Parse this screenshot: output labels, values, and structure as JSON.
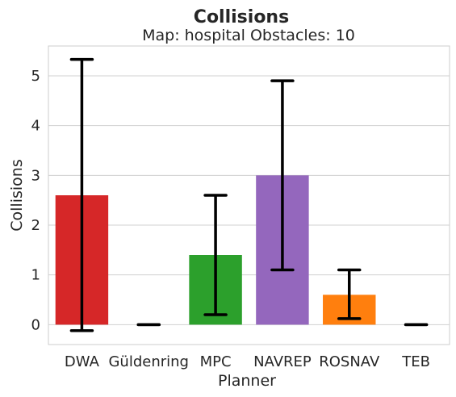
{
  "chart_data": {
    "type": "bar",
    "title": "Collisions",
    "subtitle": "Map: hospital Obstacles: 10",
    "xlabel": "Planner",
    "ylabel": "Collisions",
    "categories": [
      "DWA",
      "Güldenring",
      "MPC",
      "NAVREP",
      "ROSNAV",
      "TEB"
    ],
    "values": [
      2.6,
      0.0,
      1.4,
      3.0,
      0.6,
      0.0
    ],
    "error_low": [
      -0.12,
      0.0,
      0.2,
      1.1,
      0.12,
      0.0
    ],
    "error_high": [
      5.33,
      0.0,
      2.6,
      4.9,
      1.1,
      0.0
    ],
    "colors": [
      "#d62728",
      "#1f77b4",
      "#2ca02c",
      "#9467bd",
      "#ff7f0e",
      "#8c564b"
    ],
    "ylim": [
      -0.4,
      5.6
    ],
    "yticks": [
      0,
      1,
      2,
      3,
      4,
      5
    ],
    "grid": true
  }
}
